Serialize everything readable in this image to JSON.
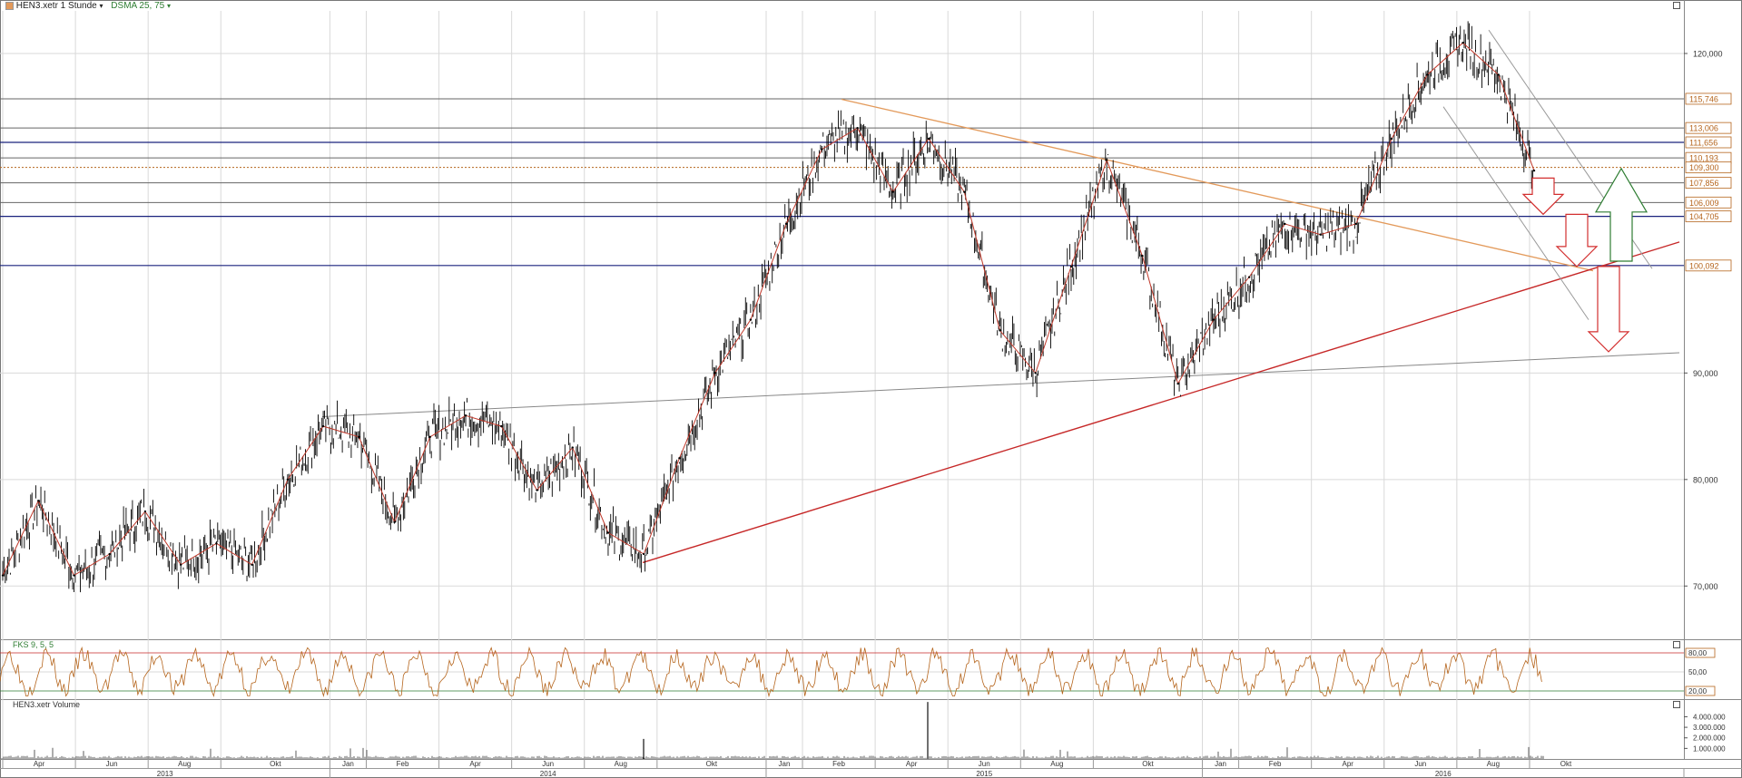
{
  "header": {
    "instrument": "HEN3.xetr 1 Stunde",
    "instrument_suffix": "▾",
    "indicator": "DSMA 25, 75",
    "indicator_suffix": "▾"
  },
  "lower_panels": {
    "stochastic_label": "FKS 9, 5, 5",
    "volume_label": "HEN3.xetr Volume"
  },
  "colors": {
    "price_up": "#000000",
    "price_down": "#222222",
    "ma_line": "#c0392b",
    "support_blue": "#1a237e",
    "resistance_gray": "#555555",
    "level_label": "#b5651d",
    "trend_orange": "#e39a5b",
    "trend_red": "#c62828",
    "arrow_red": "#d32f2f",
    "arrow_green": "#2e7d32",
    "stoch_line": "#b5651d"
  },
  "chart_data": [
    {
      "type": "line",
      "title": "HEN3.xetr 1 Stunde",
      "y_axis": {
        "ylim": [
          65,
          124
        ],
        "ticks": [
          "70,000",
          "80,000",
          "90,000",
          "120,000"
        ],
        "tick_values": [
          70,
          80,
          90,
          120
        ]
      },
      "x_axis": {
        "months": [
          "Apr",
          "Jun",
          "Aug",
          "Okt",
          "Jan",
          "Feb",
          "Apr",
          "Jun",
          "Aug",
          "Okt",
          "Jan",
          "Feb",
          "Apr",
          "Jun",
          "Aug",
          "Okt",
          "Jan",
          "Feb",
          "Apr",
          "Jun",
          "Aug",
          "Okt"
        ],
        "years": [
          "2013",
          "2014",
          "2015",
          "2016"
        ]
      },
      "series": [
        {
          "name": "HEN3.xetr",
          "x": [
            "2013-04",
            "2013-05",
            "2013-06",
            "2013-07",
            "2013-08",
            "2013-09",
            "2013-10",
            "2013-11",
            "2013-12",
            "2014-01",
            "2014-02",
            "2014-03",
            "2014-04",
            "2014-05",
            "2014-06",
            "2014-07",
            "2014-08",
            "2014-09",
            "2014-10",
            "2014-11",
            "2014-12",
            "2015-01",
            "2015-02",
            "2015-03",
            "2015-04",
            "2015-05",
            "2015-06",
            "2015-07",
            "2015-08",
            "2015-09",
            "2015-10",
            "2015-11",
            "2015-12",
            "2016-01",
            "2016-02",
            "2016-03",
            "2016-04",
            "2016-05",
            "2016-06",
            "2016-07",
            "2016-08",
            "2016-09",
            "2016-10",
            "2016-11"
          ],
          "values": [
            71,
            78,
            71,
            73,
            77,
            72,
            74,
            72,
            80,
            85,
            84,
            76,
            84,
            86,
            85,
            79,
            83,
            75,
            73,
            82,
            90,
            95,
            104,
            111,
            113,
            107,
            112,
            107,
            94,
            90,
            100,
            110,
            101,
            89,
            95,
            99,
            104,
            103,
            104,
            112,
            118,
            121,
            118,
            109
          ]
        }
      ],
      "levels": [
        {
          "label": "115,746",
          "value": 115.746,
          "style": "gray"
        },
        {
          "label": "113,006",
          "value": 113.006,
          "style": "gray"
        },
        {
          "label": "111,656",
          "value": 111.656,
          "style": "blue"
        },
        {
          "label": "110,193",
          "value": 110.193,
          "style": "gray"
        },
        {
          "label": "109,300",
          "value": 109.3,
          "style": "dotted"
        },
        {
          "label": "107,856",
          "value": 107.856,
          "style": "gray"
        },
        {
          "label": "106,009",
          "value": 106.009,
          "style": "gray"
        },
        {
          "label": "104,705",
          "value": 104.705,
          "style": "blue"
        },
        {
          "label": "100,092",
          "value": 100.092,
          "style": "blue"
        }
      ]
    },
    {
      "type": "line",
      "title": "FKS 9, 5, 5",
      "y_axis": {
        "ylim": [
          10,
          90
        ],
        "ticks": [
          "80,00",
          "50,00",
          "20,00"
        ],
        "tick_values": [
          80,
          50,
          20
        ]
      }
    },
    {
      "type": "bar",
      "title": "HEN3.xetr Volume",
      "y_axis": {
        "ylim": [
          0,
          5500000
        ],
        "ticks": [
          "4.000.000",
          "3.000.000",
          "2.000.000",
          "1.000.000"
        ],
        "tick_values": [
          4000000,
          3000000,
          2000000,
          1000000
        ]
      }
    }
  ]
}
